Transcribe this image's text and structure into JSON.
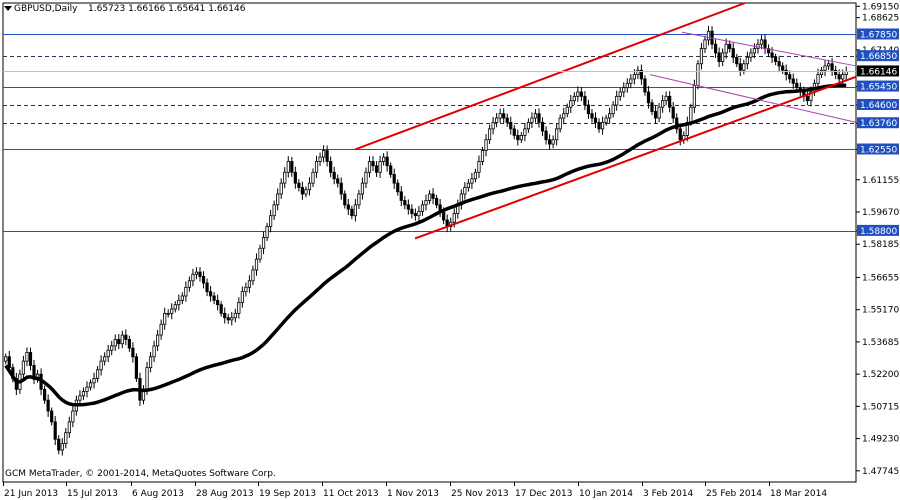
{
  "window": {
    "symbol_timeframe": "GBPUSD,Daily",
    "ohlc": "1.65723 1.66166 1.65641 1.66146",
    "copyright": "GCM MetaTrader, © 2001-2014, MetaQuotes Software Corp."
  },
  "colors": {
    "background": "#ffffff",
    "candle": "#000000",
    "moving_average": "#000000",
    "channel_line": "#e00000",
    "descending_channel": "#b040b0",
    "level_line": "#2050c0",
    "axis": "#000000"
  },
  "chart_data": {
    "type": "candlestick",
    "title": "GBPUSD,Daily",
    "x_ticks": [
      "21 Jun 2013",
      "15 Jul 2013",
      "6 Aug 2013",
      "28 Aug 2013",
      "19 Sep 2013",
      "11 Oct 2013",
      "1 Nov 2013",
      "25 Nov 2013",
      "17 Dec 2013",
      "10 Jan 2014",
      "3 Feb 2014",
      "25 Feb 2014",
      "18 Mar 2014"
    ],
    "y_ticks": [
      "1.69150",
      "1.68625",
      "1.67140",
      "1.66850",
      "1.65450",
      "1.64600",
      "1.63760",
      "1.62550",
      "1.61155",
      "1.59670",
      "1.58800",
      "1.58185",
      "1.56655",
      "1.55170",
      "1.53685",
      "1.52200",
      "1.50715",
      "1.49230",
      "1.47745"
    ],
    "ylim": [
      1.4723,
      1.693
    ],
    "current_price": "1.66146",
    "horizontal_levels": [
      {
        "label": "1.67850",
        "value": 1.6785,
        "style": "solid"
      },
      {
        "label": "1.66850",
        "value": 1.6685,
        "style": "dashed"
      },
      {
        "label": "1.65450",
        "value": 1.6545,
        "style": "solid"
      },
      {
        "label": "1.64600",
        "value": 1.646,
        "style": "dashed"
      },
      {
        "label": "1.63760",
        "value": 1.6376,
        "style": "dashed"
      },
      {
        "label": "1.62550",
        "value": 1.6255,
        "style": "solid"
      },
      {
        "label": "1.58800",
        "value": 1.588,
        "style": "solid"
      }
    ],
    "close_series": [
      1.53,
      1.525,
      1.52,
      1.515,
      1.522,
      1.528,
      1.532,
      1.526,
      1.52,
      1.522,
      1.515,
      1.51,
      1.505,
      1.5,
      1.492,
      1.487,
      1.49,
      1.495,
      1.5,
      1.505,
      1.51,
      1.512,
      1.514,
      1.516,
      1.518,
      1.52,
      1.524,
      1.528,
      1.53,
      1.533,
      1.535,
      1.538,
      1.536,
      1.54,
      1.538,
      1.534,
      1.53,
      1.52,
      1.51,
      1.515,
      1.525,
      1.53,
      1.535,
      1.54,
      1.545,
      1.55,
      1.55,
      1.552,
      1.554,
      1.556,
      1.558,
      1.562,
      1.565,
      1.568,
      1.569,
      1.567,
      1.564,
      1.56,
      1.558,
      1.556,
      1.554,
      1.55,
      1.548,
      1.547,
      1.548,
      1.55,
      1.555,
      1.56,
      1.562,
      1.565,
      1.57,
      1.575,
      1.58,
      1.585,
      1.59,
      1.595,
      1.6,
      1.605,
      1.61,
      1.615,
      1.62,
      1.615,
      1.61,
      1.608,
      1.605,
      1.607,
      1.61,
      1.615,
      1.62,
      1.622,
      1.625,
      1.62,
      1.615,
      1.612,
      1.61,
      1.605,
      1.6,
      1.598,
      1.595,
      1.6,
      1.605,
      1.61,
      1.615,
      1.62,
      1.618,
      1.615,
      1.62,
      1.622,
      1.618,
      1.614,
      1.61,
      1.606,
      1.602,
      1.6,
      1.598,
      1.596,
      1.595,
      1.597,
      1.6,
      1.602,
      1.605,
      1.603,
      1.6,
      1.597,
      1.593,
      1.59,
      1.592,
      1.596,
      1.6,
      1.605,
      1.608,
      1.61,
      1.612,
      1.615,
      1.62,
      1.625,
      1.63,
      1.635,
      1.638,
      1.64,
      1.642,
      1.64,
      1.638,
      1.635,
      1.632,
      1.63,
      1.632,
      1.635,
      1.638,
      1.64,
      1.642,
      1.638,
      1.634,
      1.63,
      1.628,
      1.63,
      1.635,
      1.64,
      1.642,
      1.645,
      1.648,
      1.65,
      1.652,
      1.65,
      1.646,
      1.642,
      1.64,
      1.638,
      1.635,
      1.638,
      1.64,
      1.642,
      1.646,
      1.65,
      1.652,
      1.654,
      1.656,
      1.658,
      1.66,
      1.662,
      1.658,
      1.652,
      1.647,
      1.643,
      1.64,
      1.645,
      1.648,
      1.65,
      1.645,
      1.64,
      1.635,
      1.63,
      1.632,
      1.638,
      1.645,
      1.655,
      1.665,
      1.672,
      1.676,
      1.68,
      1.674,
      1.67,
      1.666,
      1.67,
      1.674,
      1.672,
      1.668,
      1.665,
      1.662,
      1.665,
      1.668,
      1.67,
      1.672,
      1.674,
      1.676,
      1.672,
      1.67,
      1.668,
      1.666,
      1.664,
      1.662,
      1.66,
      1.658,
      1.656,
      1.654,
      1.652,
      1.65,
      1.648,
      1.652,
      1.656,
      1.66,
      1.662,
      1.664,
      1.665,
      1.662,
      1.66,
      1.658,
      1.66,
      1.6615
    ]
  }
}
